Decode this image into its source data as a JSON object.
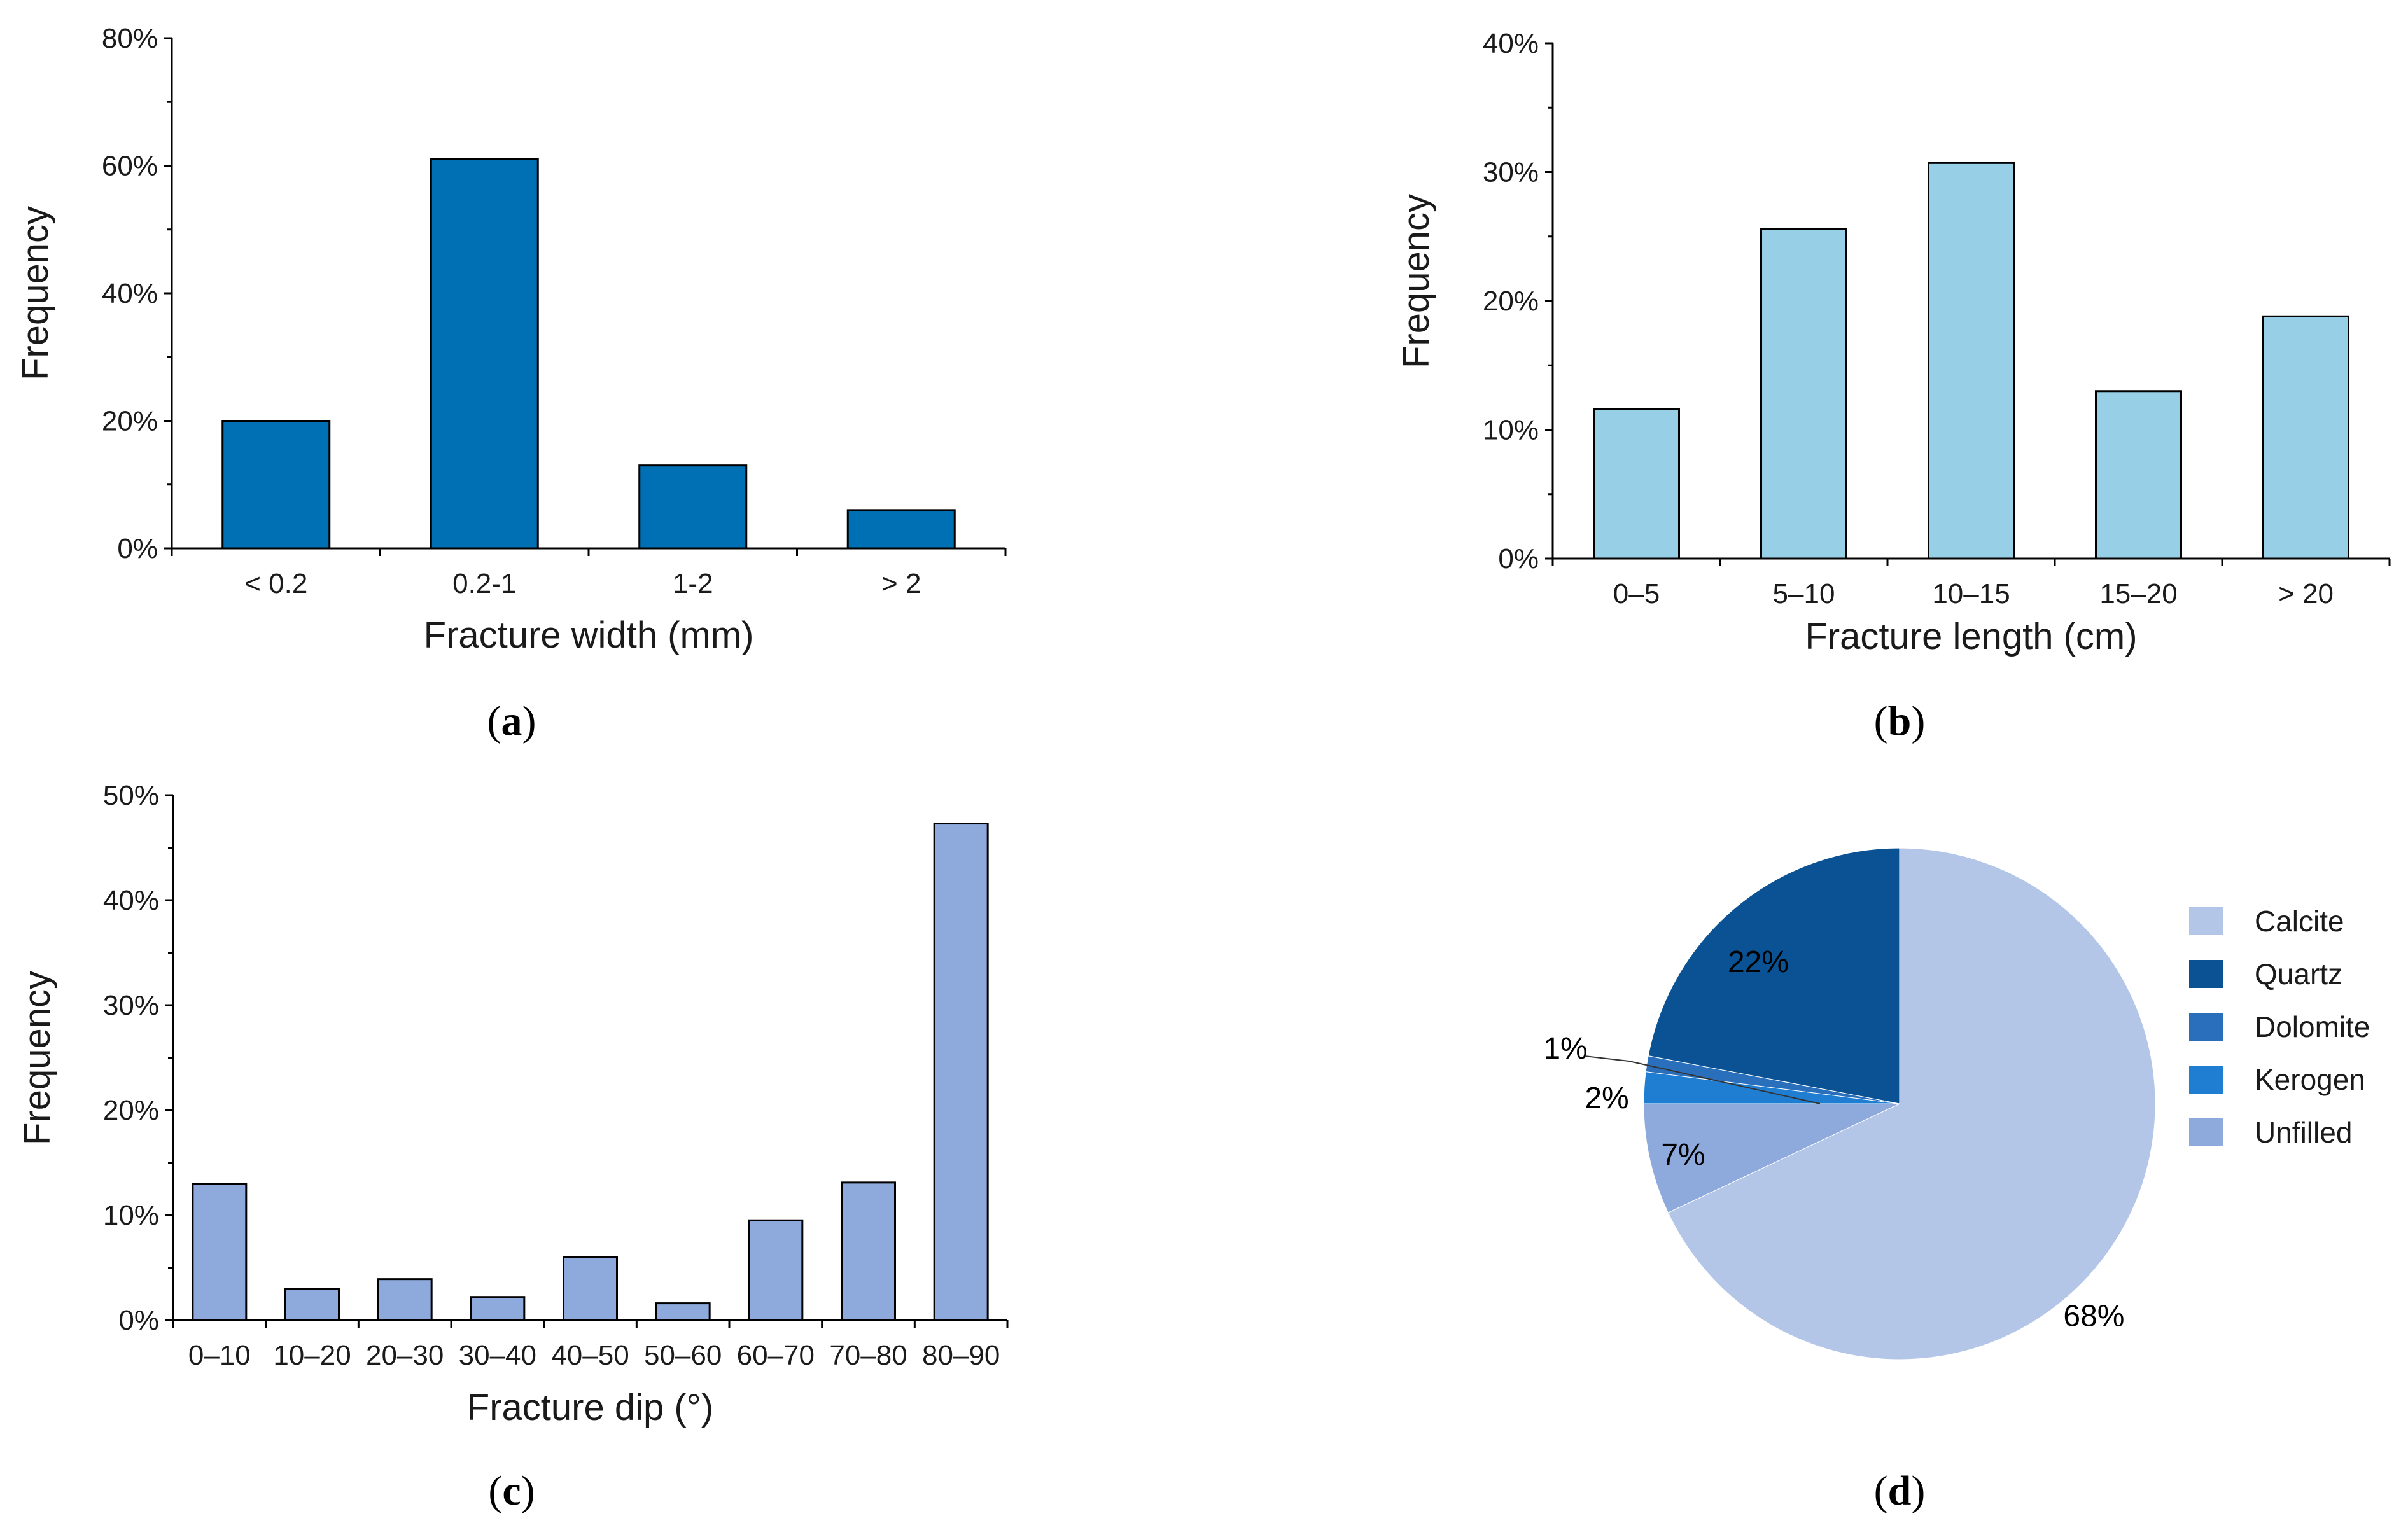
{
  "chart_data": [
    {
      "id": "a",
      "type": "bar",
      "panel_label": "a",
      "categories": [
        "< 0.2",
        "0.2-1",
        "1-2",
        "> 2"
      ],
      "values": [
        0.2,
        0.61,
        0.13,
        0.06
      ],
      "yticks": [
        0,
        0.2,
        0.4,
        0.6,
        0.8
      ],
      "ytick_labels": [
        "0%",
        "20%",
        "40%",
        "60%",
        "80%"
      ],
      "ylim": [
        0,
        0.8
      ],
      "xlabel": "Fracture width (mm)",
      "ylabel": "Frequency",
      "color": "#0070b4"
    },
    {
      "id": "b",
      "type": "bar",
      "panel_label": "b",
      "categories": [
        "0–5",
        "5–10",
        "10–15",
        "15–20",
        "> 20"
      ],
      "values": [
        0.116,
        0.256,
        0.307,
        0.13,
        0.188
      ],
      "yticks": [
        0,
        0.1,
        0.2,
        0.3,
        0.4
      ],
      "ytick_labels": [
        "0%",
        "10%",
        "20%",
        "30%",
        "40%"
      ],
      "ylim": [
        0,
        0.4
      ],
      "xlabel": "Fracture length (cm)",
      "ylabel": "Frequency",
      "color": "#97d0e6"
    },
    {
      "id": "c",
      "type": "bar",
      "panel_label": "c",
      "categories": [
        "0–10",
        "10–20",
        "20–30",
        "30–40",
        "40–50",
        "50–60",
        "60–70",
        "70–80",
        "80–90"
      ],
      "values": [
        0.13,
        0.03,
        0.039,
        0.022,
        0.06,
        0.016,
        0.095,
        0.131,
        0.473
      ],
      "yticks": [
        0,
        0.1,
        0.2,
        0.3,
        0.4,
        0.5
      ],
      "ytick_labels": [
        "0%",
        "10%",
        "20%",
        "30%",
        "40%",
        "50%"
      ],
      "ylim": [
        0,
        0.5
      ],
      "xlabel": "Fracture dip (°)",
      "ylabel": "Frequency",
      "color": "#8ea9db"
    },
    {
      "id": "d",
      "type": "pie",
      "panel_label": "d",
      "slices": [
        {
          "name": "Calcite",
          "value": 68,
          "label": "68%",
          "color": "#b4c6e7"
        },
        {
          "name": "Unfilled",
          "value": 7,
          "label": "7%",
          "color": "#8ea9db"
        },
        {
          "name": "Kerogen",
          "value": 2,
          "label": "2%",
          "color": "#1f7ed1"
        },
        {
          "name": "Dolomite",
          "value": 1,
          "label": "1%",
          "color": "#2a6fbb"
        },
        {
          "name": "Quartz",
          "value": 22,
          "label": "22%",
          "color": "#0a5294"
        }
      ],
      "legend_order": [
        "Calcite",
        "Quartz",
        "Dolomite",
        "Kerogen",
        "Unfilled"
      ],
      "legend_position": "right"
    }
  ]
}
